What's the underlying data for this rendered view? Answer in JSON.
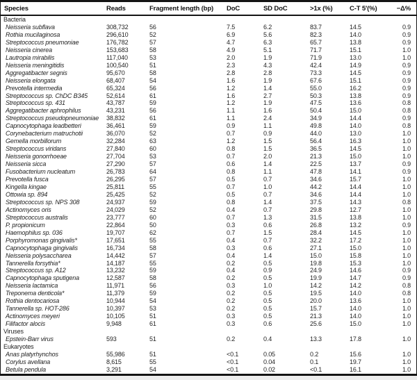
{
  "table": {
    "columns": [
      {
        "key": "species",
        "label": "Species"
      },
      {
        "key": "reads",
        "label": "Reads"
      },
      {
        "key": "fragment-length-bp",
        "label": "Fragment length (bp)"
      },
      {
        "key": "doc",
        "label": "DoC"
      },
      {
        "key": "sd-doc",
        "label": "SD DoC"
      },
      {
        "key": "gt-1x-pct",
        "label": ">1x (%)"
      },
      {
        "key": "ct-5prime-pct",
        "label": "C-T 5′(%)"
      },
      {
        "key": "neg-delta-pct",
        "label": "−Δ%"
      }
    ],
    "sections": [
      {
        "label": "Bacteria",
        "rows": [
          [
            "Neisseria subflava",
            "308,732",
            "56",
            "7.5",
            "6.2",
            "83.7",
            "14.5",
            "0.9"
          ],
          [
            "Rothia mucilaginosa",
            "296,610",
            "52",
            "6.9",
            "5.6",
            "82.3",
            "14.0",
            "0.9"
          ],
          [
            "Streptococcus pneumoniae",
            "176,782",
            "57",
            "4.7",
            "6.3",
            "65.7",
            "13.8",
            "0.9"
          ],
          [
            "Neisseria cinerea",
            "153,683",
            "58",
            "4.9",
            "5.1",
            "71.7",
            "15.1",
            "1.0"
          ],
          [
            "Lautropia mirabilis",
            "117,040",
            "53",
            "2.0",
            "1.9",
            "71.9",
            "13.0",
            "1.0"
          ],
          [
            "Neisseria meningitidis",
            "100,540",
            "51",
            "2.3",
            "4.3",
            "42.4",
            "14.9",
            "0.9"
          ],
          [
            "Aggregatibacter segnis",
            "95,670",
            "58",
            "2.8",
            "2.8",
            "73.3",
            "14.5",
            "0.9"
          ],
          [
            "Neisseria elongata",
            "68,407",
            "54",
            "1.6",
            "1.9",
            "67.6",
            "15.1",
            "0.9"
          ],
          [
            "Prevotella intermedia",
            "65,324",
            "56",
            "1.2",
            "1.4",
            "55.0",
            "16.2",
            "0.9"
          ],
          [
            "Streptococcus sp. ChDC B345",
            "52,614",
            "61",
            "1.6",
            "2.7",
            "50.3",
            "13.8",
            "0.9"
          ],
          [
            "Streptococcus sp. 431",
            "43,787",
            "59",
            "1.2",
            "1.9",
            "47.5",
            "13.6",
            "0.8"
          ],
          [
            "Aggregatibacter aphrophilus",
            "43,231",
            "56",
            "1.1",
            "1.6",
            "50.4",
            "15.0",
            "0.8"
          ],
          [
            "Streptococcus pseudopneumoniae",
            "38,832",
            "61",
            "1.1",
            "2.4",
            "34.9",
            "14.4",
            "0.9"
          ],
          [
            "Capnocytophaga leadbetteri",
            "36,461",
            "59",
            "0.9",
            "1.1",
            "49.8",
            "14.0",
            "0.8"
          ],
          [
            "Corynebacterium matruchotii",
            "36,070",
            "52",
            "0.7",
            "0.9",
            "44.0",
            "13.0",
            "1.0"
          ],
          [
            "Gemella morbillorum",
            "32,284",
            "63",
            "1.2",
            "1.5",
            "56.4",
            "16.3",
            "1.0"
          ],
          [
            "Streptococcus viridans",
            "27,840",
            "60",
            "0.8",
            "1.5",
            "36.5",
            "14.5",
            "1.0"
          ],
          [
            "Neisseria gonorrhoeae",
            "27,704",
            "53",
            "0.7",
            "2.0",
            "21.3",
            "15.0",
            "1.0"
          ],
          [
            "Neisseria sicca",
            "27,290",
            "57",
            "0.6",
            "1.4",
            "22.5",
            "13.7",
            "0.9"
          ],
          [
            "Fusobacterium nucleatum",
            "26,783",
            "64",
            "0.8",
            "1.1",
            "47.8",
            "14.1",
            "0.9"
          ],
          [
            "Prevotella fusca",
            "26,295",
            "57",
            "0.5",
            "0.7",
            "34.6",
            "15.7",
            "1.0"
          ],
          [
            "Kingella kingae",
            "25,811",
            "55",
            "0.7",
            "1.0",
            "44.2",
            "14.4",
            "1.0"
          ],
          [
            "Ottowia sp. 894",
            "25,425",
            "52",
            "0.5",
            "0.7",
            "34.6",
            "14.4",
            "1.0"
          ],
          [
            "Streptococcus sp. NPS 308",
            "24,937",
            "59",
            "0.8",
            "1.4",
            "37.5",
            "14.3",
            "0.8"
          ],
          [
            "Actinomyces oris",
            "24,029",
            "52",
            "0.4",
            "0.7",
            "29.8",
            "12.7",
            "1.0"
          ],
          [
            "Streptococcus australis",
            "23,777",
            "60",
            "0.7",
            "1.3",
            "31.5",
            "13.8",
            "1.0"
          ],
          [
            "P. propionicum",
            "22,864",
            "50",
            "0.3",
            "0.6",
            "26.8",
            "13.2",
            "0.9"
          ],
          [
            "Haemophilus sp. 036",
            "19,707",
            "62",
            "0.7",
            "1.5",
            "28.4",
            "14.5",
            "1.0"
          ],
          [
            "Porphyromonas gingivalis*",
            "17,651",
            "55",
            "0.4",
            "0.7",
            "32.2",
            "17.2",
            "1.0"
          ],
          [
            "Capnocytophaga gingivalis",
            "16,734",
            "58",
            "0.3",
            "0.6",
            "27.1",
            "15.0",
            "1.0"
          ],
          [
            "Neisseria polysaccharea",
            "14,442",
            "57",
            "0.4",
            "1.4",
            "15.0",
            "15.8",
            "1.0"
          ],
          [
            "Tannerella forsythia*",
            "14,187",
            "55",
            "0.2",
            "0.5",
            "19.8",
            "15.3",
            "1.0"
          ],
          [
            "Streptococcus sp. A12",
            "13,232",
            "59",
            "0.4",
            "0.9",
            "24.9",
            "14.6",
            "0.9"
          ],
          [
            "Capnocytophaga sputigena",
            "12,587",
            "58",
            "0.2",
            "0.5",
            "19.9",
            "14.7",
            "0.9"
          ],
          [
            "Neisseria lactamica",
            "11,971",
            "56",
            "0.3",
            "1.0",
            "14.2",
            "14.2",
            "0.8"
          ],
          [
            "Treponema denticola*",
            "11,379",
            "59",
            "0.2",
            "0.5",
            "19.5",
            "14.0",
            "0.8"
          ],
          [
            "Rothia dentocariosa",
            "10,944",
            "54",
            "0.2",
            "0.5",
            "20.0",
            "13.6",
            "1.0"
          ],
          [
            "Tannerella sp. HOT-286",
            "10,397",
            "53",
            "0.2",
            "0.5",
            "15.7",
            "14.0",
            "1.0"
          ],
          [
            "Actinomyces meyeri",
            "10,105",
            "51",
            "0.3",
            "0.5",
            "21.3",
            "14.0",
            "1.0"
          ],
          [
            "Filifactor alocis",
            "9,948",
            "61",
            "0.3",
            "0.6",
            "25.6",
            "15.0",
            "1.0"
          ]
        ]
      },
      {
        "label": "Viruses",
        "rows": [
          [
            "Epstein-Barr virus",
            "593",
            "51",
            "0.2",
            "0.4",
            "13.3",
            "17.8",
            "1.0"
          ]
        ]
      },
      {
        "label": "Eukaryotes",
        "rows": [
          [
            "Anas platyrhynchos",
            "55,986",
            "51",
            "<0.1",
            "0.05",
            "0.2",
            "15.6",
            "1.0"
          ],
          [
            "Corylus avellana",
            "8,615",
            "55",
            "<0.1",
            "0.04",
            "0.1",
            "19.7",
            "1.0"
          ],
          [
            "Betula pendula",
            "3,291",
            "54",
            "<0.1",
            "0.02",
            "<0.1",
            "16.1",
            "1.0"
          ]
        ]
      }
    ]
  }
}
